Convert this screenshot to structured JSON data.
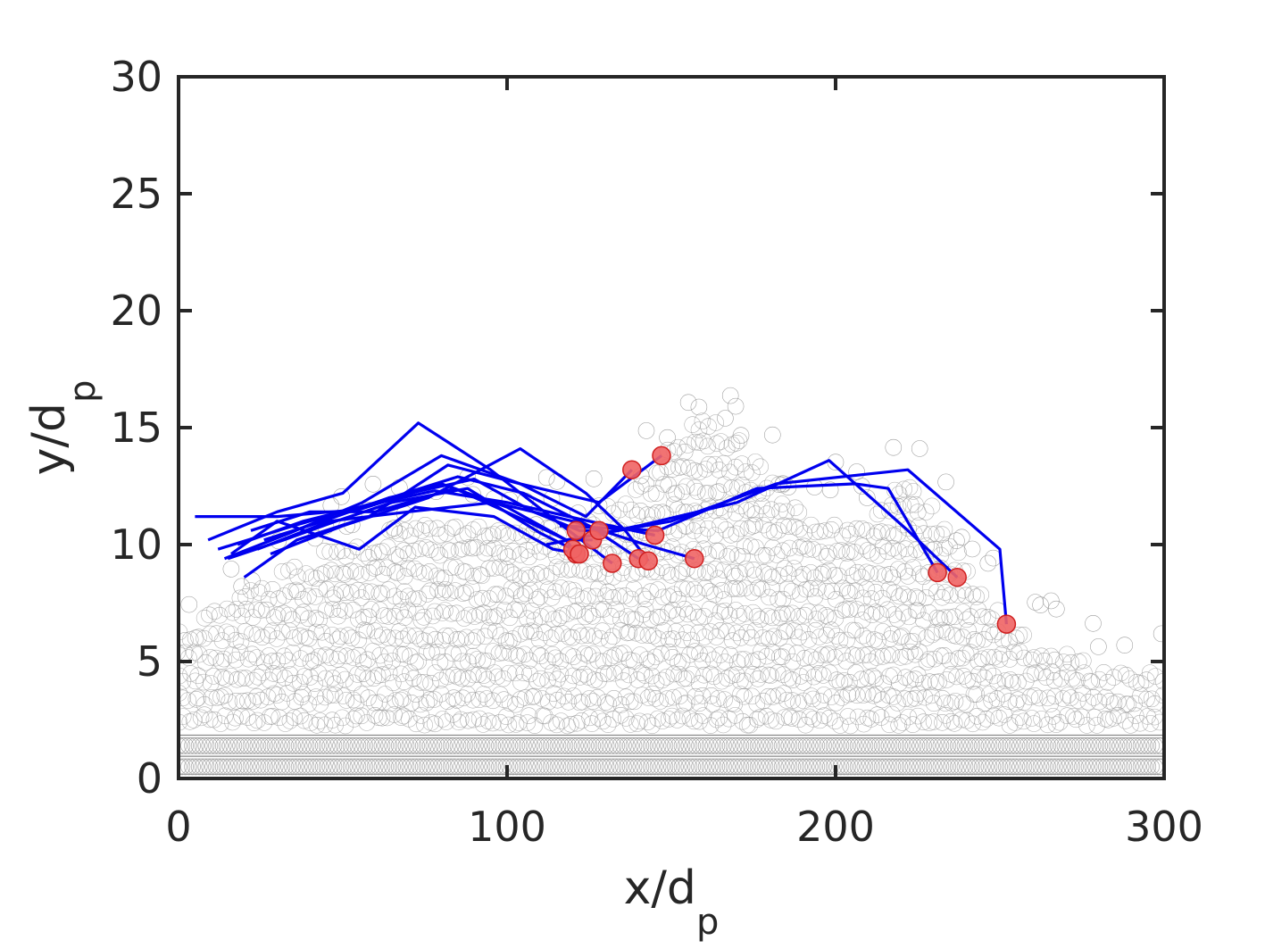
{
  "chart_data": {
    "type": "scatter",
    "xlabel": {
      "main": "x/d",
      "sub": "p"
    },
    "ylabel": {
      "main": "y/d",
      "sub": "p"
    },
    "xlim": [
      0,
      300
    ],
    "ylim": [
      0,
      30
    ],
    "xticks": [
      0,
      100,
      200,
      300
    ],
    "yticks": [
      0,
      5,
      10,
      15,
      20,
      25,
      30
    ],
    "grid": false,
    "legend": "none",
    "colors": {
      "bed": "#9a9a9a",
      "trajectory": "#0000ee",
      "endpoint_fill": "#f06464",
      "endpoint_edge": "#d02020",
      "axes": "#262626"
    },
    "bed_profile": {
      "x": [
        0,
        20,
        40,
        60,
        80,
        100,
        120,
        140,
        150,
        160,
        170,
        180,
        190,
        200,
        210,
        220,
        230,
        240,
        250,
        260,
        270,
        280,
        290,
        300
      ],
      "y_top": [
        6.5,
        8.0,
        9.5,
        10.5,
        11.0,
        11.0,
        10.5,
        12.5,
        14.5,
        15.5,
        14.5,
        13.0,
        11.5,
        11.5,
        11.0,
        13.0,
        11.5,
        9.0,
        7.0,
        6.0,
        5.5,
        5.0,
        5.0,
        5.0
      ],
      "fixed_layers_y": [
        0.5,
        1.4
      ]
    },
    "trajectories": [
      {
        "x": [
          5,
          30,
          55,
          80,
          100,
          118,
          121
        ],
        "y": [
          11.2,
          11.2,
          11.5,
          12.6,
          11.6,
          10.2,
          9.6
        ]
      },
      {
        "x": [
          9,
          30,
          50,
          73,
          95,
          115,
          132
        ],
        "y": [
          10.2,
          11.4,
          12.2,
          15.2,
          13.2,
          11.0,
          9.2
        ]
      },
      {
        "x": [
          12,
          35,
          60,
          85,
          105,
          125,
          140
        ],
        "y": [
          9.8,
          10.8,
          11.8,
          12.9,
          12.2,
          10.8,
          9.4
        ]
      },
      {
        "x": [
          15,
          32,
          48,
          65,
          88,
          110,
          120
        ],
        "y": [
          9.4,
          10.2,
          11.0,
          11.8,
          12.4,
          10.5,
          9.8
        ]
      },
      {
        "x": [
          18,
          38,
          55,
          78,
          100,
          125,
          145
        ],
        "y": [
          10.0,
          11.0,
          11.6,
          12.3,
          11.8,
          11.0,
          10.4
        ]
      },
      {
        "x": [
          20,
          36,
          58,
          82,
          104,
          124,
          138
        ],
        "y": [
          8.6,
          10.2,
          11.2,
          13.4,
          12.6,
          11.2,
          13.2
        ]
      },
      {
        "x": [
          14,
          34,
          56,
          80,
          104,
          128,
          147
        ],
        "y": [
          9.4,
          10.5,
          11.8,
          13.8,
          12.6,
          11.8,
          13.8
        ]
      },
      {
        "x": [
          16,
          30,
          55,
          72,
          96,
          114,
          122
        ],
        "y": [
          9.6,
          11.0,
          9.8,
          11.6,
          11.2,
          9.8,
          9.6
        ]
      },
      {
        "x": [
          22,
          40,
          60,
          84,
          106,
          118,
          126
        ],
        "y": [
          10.6,
          11.4,
          11.4,
          12.4,
          11.0,
          10.2,
          10.2
        ]
      },
      {
        "x": [
          26,
          44,
          64,
          90,
          108,
          122,
          128
        ],
        "y": [
          10.2,
          11.0,
          12.0,
          12.8,
          11.4,
          10.6,
          10.6
        ]
      },
      {
        "x": [
          24,
          46,
          70,
          96,
          120,
          142,
          157
        ],
        "y": [
          9.8,
          11.0,
          11.4,
          11.8,
          11.0,
          10.0,
          9.4
        ]
      },
      {
        "x": [
          28,
          50,
          76,
          104,
          124,
          136,
          143
        ],
        "y": [
          9.6,
          10.8,
          12.0,
          14.1,
          12.2,
          10.6,
          9.3
        ]
      },
      {
        "x": [
          112,
          140,
          170,
          198,
          222,
          237
        ],
        "y": [
          10.0,
          10.8,
          11.8,
          13.6,
          10.6,
          8.6
        ]
      },
      {
        "x": [
          116,
          146,
          176,
          206,
          216,
          231
        ],
        "y": [
          10.8,
          10.6,
          12.4,
          12.6,
          12.4,
          8.8
        ]
      },
      {
        "x": [
          118,
          150,
          182,
          222,
          250,
          252
        ],
        "y": [
          10.2,
          11.0,
          12.6,
          13.2,
          9.8,
          6.6
        ]
      }
    ],
    "endpoints": [
      {
        "x": 121,
        "y": 9.6
      },
      {
        "x": 132,
        "y": 9.2
      },
      {
        "x": 140,
        "y": 9.4
      },
      {
        "x": 120,
        "y": 9.8
      },
      {
        "x": 145,
        "y": 10.4
      },
      {
        "x": 138,
        "y": 13.2
      },
      {
        "x": 147,
        "y": 13.8
      },
      {
        "x": 122,
        "y": 9.6
      },
      {
        "x": 126,
        "y": 10.2
      },
      {
        "x": 128,
        "y": 10.6
      },
      {
        "x": 157,
        "y": 9.4
      },
      {
        "x": 143,
        "y": 9.3
      },
      {
        "x": 237,
        "y": 8.6
      },
      {
        "x": 231,
        "y": 8.8
      },
      {
        "x": 252,
        "y": 6.6
      },
      {
        "x": 121,
        "y": 10.6
      }
    ]
  }
}
